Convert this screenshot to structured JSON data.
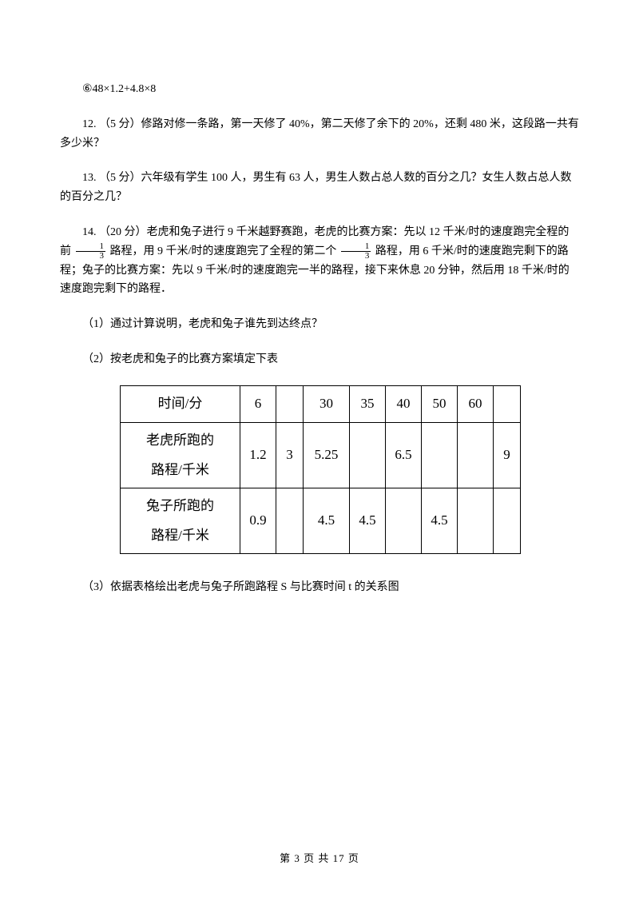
{
  "q6": "⑥48×1.2+4.8×8",
  "q12": "12. （5 分）修路对修一条路，第一天修了 40%，第二天修了余下的 20%，还剩 480 米，这段路一共有多少米？",
  "q13": "13. （5 分）六年级有学生 100 人，男生有 63 人，男生人数占总人数的百分之几？女生人数占总人数的百分之几？",
  "q14_a": "14. （20 分）老虎和兔子进行 9 千米越野赛跑，老虎的比赛方案：先以 12 千米/时的速度跑完全程的",
  "q14_b": "路程，用 9 千米/时的速度跑完了全程的第二个",
  "q14_c": "路程，用 6 千米/时的速度跑完剩下的路程；兔子的比赛方案：先以 9 千米/时的速度跑完一半的路程，接下来休息 20 分钟，然后用 18 千米/时的速度跑完剩下的路程．",
  "q14_1": "（1）通过计算说明，老虎和兔子谁先到达终点？",
  "q14_2": "（2）按老虎和兔子的比赛方案填定下表",
  "q14_3": "（3）依据表格绘出老虎与兔子所跑路程 S 与比赛时间 t 的关系图",
  "frac": {
    "num": "1",
    "den": "3"
  },
  "table": {
    "headers": {
      "time": "时间/分",
      "tiger": "老虎所跑的<br>路程/千米",
      "rabbit": "兔子所跑的<br>路程/千米"
    },
    "time_row": [
      "6",
      "",
      "30",
      "35",
      "40",
      "50",
      "60",
      ""
    ],
    "tiger_row": [
      "1.2",
      "3",
      "5.25",
      "",
      "6.5",
      "",
      "",
      "9"
    ],
    "rabbit_row": [
      "0.9",
      "",
      "4.5",
      "4.5",
      "",
      "4.5",
      "",
      ""
    ],
    "col_classes": [
      "c-md",
      "c-sm",
      "c-lg",
      "c-md",
      "c-md",
      "c-md",
      "c-md",
      "c-sm"
    ]
  },
  "footer": "第 3 页 共 17 页"
}
